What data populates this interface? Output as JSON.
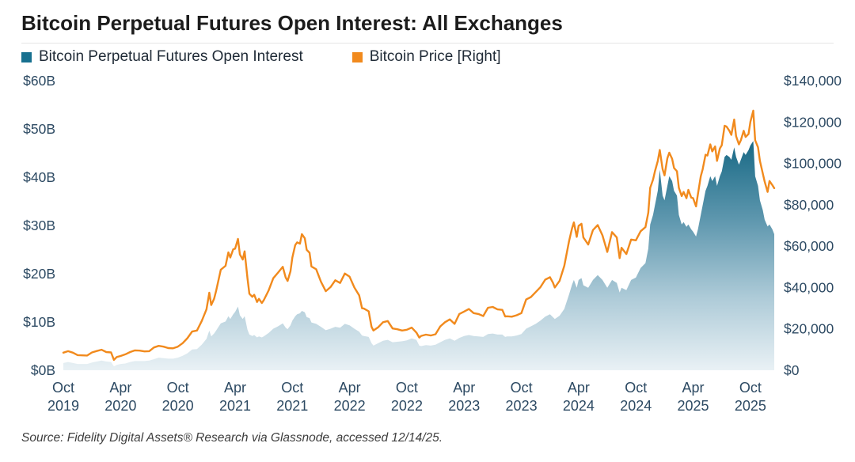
{
  "chart_data": {
    "type": "area+line",
    "title": "Bitcoin Perpetual Futures Open Interest: All Exchanges",
    "source": "Source: Fidelity Digital Assets® Research via Glassnode, accessed 12/14/25.",
    "axis_label_color": "#2d4a63",
    "legend_position": "top-left",
    "grid": false,
    "series": [
      {
        "name": "Bitcoin Perpetual Futures Open Interest",
        "type": "area",
        "axis": "left",
        "swatch_color": "#17708f",
        "gradient_stops": [
          {
            "offset": "0%",
            "color": "#0b5876"
          },
          {
            "offset": "22%",
            "color": "#1b6b87"
          },
          {
            "offset": "48%",
            "color": "#5e97ae"
          },
          {
            "offset": "75%",
            "color": "#aecbd8"
          },
          {
            "offset": "100%",
            "color": "#e9f1f5"
          }
        ]
      },
      {
        "name": "Bitcoin Price [Right]",
        "type": "line",
        "axis": "right",
        "color": "#f18a1d"
      }
    ],
    "left_axis": {
      "min": 0,
      "max": 60,
      "unit": "billion USD",
      "ticks": [
        {
          "label": "$0B",
          "v": 0
        },
        {
          "label": "$10B",
          "v": 10
        },
        {
          "label": "$20B",
          "v": 20
        },
        {
          "label": "$30B",
          "v": 30
        },
        {
          "label": "$40B",
          "v": 40
        },
        {
          "label": "$50B",
          "v": 50
        },
        {
          "label": "$60B",
          "v": 60
        }
      ]
    },
    "right_axis": {
      "min": 0,
      "max": 140,
      "unit": "thousand USD",
      "ticks": [
        {
          "label": "$0",
          "v": 0
        },
        {
          "label": "$20,000",
          "v": 20
        },
        {
          "label": "$40,000",
          "v": 40
        },
        {
          "label": "$60,000",
          "v": 60
        },
        {
          "label": "$80,000",
          "v": 80
        },
        {
          "label": "$100,000",
          "v": 100
        },
        {
          "label": "$120,000",
          "v": 120
        },
        {
          "label": "$140,000",
          "v": 140
        }
      ]
    },
    "x_ticks": [
      {
        "month": "Oct",
        "year": "2019",
        "t": 0
      },
      {
        "month": "Apr",
        "year": "2020",
        "t": 6
      },
      {
        "month": "Oct",
        "year": "2020",
        "t": 12
      },
      {
        "month": "Apr",
        "year": "2021",
        "t": 18
      },
      {
        "month": "Oct",
        "year": "2021",
        "t": 24
      },
      {
        "month": "Apr",
        "year": "2022",
        "t": 30
      },
      {
        "month": "Oct",
        "year": "2022",
        "t": 36
      },
      {
        "month": "Apr",
        "year": "2023",
        "t": 42
      },
      {
        "month": "Oct",
        "year": "2023",
        "t": 48
      },
      {
        "month": "Apr",
        "year": "2024",
        "t": 54
      },
      {
        "month": "Oct",
        "year": "2024",
        "t": 60
      },
      {
        "month": "Apr",
        "year": "2025",
        "t": 66
      },
      {
        "month": "Oct",
        "year": "2025",
        "t": 72
      }
    ],
    "x_months_since_oct2019": [
      0,
      0.5,
      1,
      1.5,
      2,
      2.5,
      3,
      3.5,
      4,
      4.5,
      5,
      5.3,
      5.6,
      6,
      6.5,
      7,
      7.5,
      8,
      8.5,
      9,
      9.5,
      10,
      10.5,
      11,
      11.5,
      12,
      12.5,
      13,
      13.5,
      14,
      14.5,
      15,
      15.3,
      15.5,
      15.8,
      16,
      16.5,
      17,
      17.3,
      17.5,
      17.8,
      18,
      18.3,
      18.5,
      18.8,
      19,
      19.3,
      19.5,
      19.8,
      20,
      20.3,
      20.5,
      20.8,
      21,
      21.5,
      22,
      22.5,
      23,
      23.3,
      23.5,
      23.8,
      24,
      24.3,
      24.5,
      24.8,
      25,
      25.3,
      25.5,
      25.8,
      26,
      26.5,
      27,
      27.5,
      28,
      28.5,
      29,
      29.5,
      30,
      30.5,
      31,
      31.3,
      31.5,
      32,
      32.3,
      32.5,
      33,
      33.5,
      34,
      34.5,
      35,
      35.5,
      36,
      36.5,
      37,
      37.3,
      37.5,
      38,
      38.5,
      39,
      39.5,
      40,
      40.5,
      41,
      41.5,
      42,
      42.5,
      43,
      43.5,
      44,
      44.5,
      45,
      45.5,
      46,
      46.3,
      46.5,
      47,
      47.5,
      48,
      48.5,
      49,
      49.5,
      50,
      50.5,
      51,
      51.3,
      51.5,
      52,
      52.5,
      53,
      53.3,
      53.5,
      53.8,
      54,
      54.3,
      54.5,
      55,
      55.5,
      56,
      56.5,
      57,
      57.5,
      58,
      58.3,
      58.5,
      59,
      59.5,
      60,
      60.5,
      61,
      61.3,
      61.5,
      61.8,
      62,
      62.3,
      62.5,
      62.8,
      63,
      63.3,
      63.5,
      63.8,
      64,
      64.3,
      64.5,
      64.8,
      65,
      65.3,
      65.5,
      65.8,
      66,
      66.3,
      66.5,
      66.8,
      67,
      67.3,
      67.5,
      67.8,
      68,
      68.3,
      68.5,
      68.8,
      69,
      69.3,
      69.5,
      69.8,
      70,
      70.3,
      70.5,
      70.8,
      71,
      71.3,
      71.5,
      71.8,
      72,
      72.3,
      72.5,
      72.8,
      73,
      73.3,
      73.5,
      73.8,
      74,
      74.3,
      74.5
    ],
    "open_interest_billions": [
      1.5,
      1.7,
      1.5,
      1.3,
      1.3,
      1.3,
      1.6,
      1.8,
      2.0,
      1.8,
      1.7,
      0.8,
      1.1,
      1.3,
      1.4,
      1.7,
      1.9,
      1.9,
      1.9,
      2.0,
      2.3,
      2.6,
      2.5,
      2.4,
      2.4,
      2.6,
      3.0,
      3.5,
      4.3,
      4.4,
      5.3,
      6.5,
      8.2,
      7.0,
      7.6,
      8.2,
      9.7,
      10.1,
      11.2,
      10.6,
      11.6,
      12.1,
      13.2,
      11.4,
      10.6,
      11.2,
      8.4,
      7.4,
      7.1,
      7.3,
      6.8,
      7.0,
      6.8,
      7.0,
      7.7,
      8.6,
      9.1,
      9.7,
      8.8,
      8.5,
      9.3,
      10.3,
      11.2,
      11.6,
      11.8,
      12.3,
      12.0,
      11.0,
      10.8,
      9.9,
      9.6,
      9.0,
      8.3,
      8.6,
      9.0,
      8.8,
      9.6,
      9.3,
      8.6,
      8.0,
      7.2,
      7.1,
      6.9,
      5.6,
      5.1,
      5.6,
      6.1,
      6.3,
      5.8,
      5.9,
      6.0,
      6.2,
      6.6,
      6.3,
      5.1,
      5.0,
      5.2,
      5.1,
      5.3,
      5.8,
      6.3,
      6.6,
      6.1,
      6.7,
      7.1,
      7.3,
      7.1,
      7.0,
      6.9,
      7.5,
      7.6,
      7.4,
      7.4,
      6.9,
      7.0,
      7.0,
      7.2,
      7.5,
      8.6,
      9.1,
      9.6,
      10.3,
      11.1,
      11.6,
      11.0,
      10.6,
      11.3,
      12.7,
      15.7,
      17.7,
      18.7,
      17.1,
      18.7,
      19.1,
      17.6,
      17.1,
      18.7,
      19.7,
      18.7,
      17.1,
      18.7,
      18.1,
      16.1,
      17.1,
      16.6,
      18.7,
      19.2,
      21.2,
      22.2,
      25.2,
      30.2,
      32.2,
      34.2,
      37.2,
      41.5,
      36.2,
      35.2,
      38.2,
      40.2,
      39.2,
      37.2,
      36.2,
      32.2,
      30.2,
      30.7,
      29.7,
      30.2,
      29.2,
      28.7,
      27.7,
      29.2,
      32.2,
      34.2,
      37.2,
      38.2,
      40.2,
      39.2,
      40.2,
      38.2,
      40.2,
      41.2,
      44.2,
      44.6,
      44.2,
      43.6,
      46.2,
      44.2,
      42.6,
      43.6,
      45.2,
      44.6,
      45.6,
      46.6,
      47.5,
      40.2,
      38.2,
      35.2,
      33.2,
      31.2,
      29.8,
      30.2,
      29.2,
      28.2
    ],
    "price_thousands": [
      8.5,
      9.2,
      8.5,
      7.3,
      7.2,
      7.1,
      8.6,
      9.3,
      9.9,
      8.8,
      8.6,
      5.0,
      6.4,
      6.9,
      7.7,
      8.8,
      9.6,
      9.5,
      9.1,
      9.2,
      11.0,
      11.8,
      11.4,
      10.7,
      10.6,
      11.4,
      13.1,
      15.5,
      18.7,
      19.2,
      23.8,
      29.4,
      37.5,
      31.5,
      34.5,
      38.2,
      48.6,
      50.5,
      57.0,
      54.5,
      58.5,
      58.8,
      63.5,
      56.0,
      53.5,
      57.5,
      44.5,
      37.0,
      35.5,
      36.5,
      33.0,
      34.5,
      32.5,
      33.8,
      38.5,
      44.5,
      47.2,
      50.0,
      44.8,
      43.2,
      47.8,
      54.5,
      60.5,
      61.8,
      61.2,
      65.8,
      63.8,
      58.2,
      56.8,
      50.2,
      48.8,
      42.8,
      38.2,
      40.2,
      43.5,
      42.2,
      46.8,
      45.2,
      40.0,
      36.2,
      30.0,
      29.8,
      28.5,
      21.0,
      19.2,
      20.8,
      23.2,
      23.8,
      20.2,
      19.8,
      19.2,
      19.6,
      20.6,
      18.2,
      15.8,
      16.6,
      17.2,
      16.8,
      17.4,
      21.2,
      23.2,
      24.6,
      22.4,
      27.2,
      28.4,
      29.6,
      27.6,
      27.2,
      26.2,
      30.2,
      30.6,
      29.4,
      29.2,
      26.0,
      26.1,
      25.9,
      26.6,
      27.6,
      34.2,
      35.4,
      37.8,
      40.2,
      43.8,
      45.0,
      42.4,
      40.0,
      43.2,
      50.5,
      62.4,
      68.5,
      71.5,
      64.5,
      69.8,
      70.8,
      64.2,
      60.8,
      67.8,
      70.2,
      65.2,
      57.2,
      66.8,
      64.2,
      54.2,
      59.2,
      56.2,
      63.2,
      62.8,
      67.2,
      69.2,
      76.2,
      88.2,
      92.2,
      96.2,
      101.2,
      106.5,
      97.2,
      94.2,
      102.5,
      105.2,
      102.2,
      97.8,
      96.2,
      88.2,
      84.2,
      86.2,
      83.2,
      87.2,
      83.5,
      83.2,
      79.2,
      85.2,
      93.8,
      97.2,
      104.2,
      103.8,
      109.2,
      105.8,
      108.2,
      101.2,
      107.2,
      108.8,
      118.2,
      117.8,
      115.8,
      113.8,
      121.2,
      113.2,
      109.2,
      111.2,
      115.8,
      112.8,
      114.2,
      120.2,
      125.5,
      111.2,
      107.8,
      101.2,
      95.2,
      91.2,
      86.2,
      91.5,
      89.5,
      88.0
    ]
  }
}
